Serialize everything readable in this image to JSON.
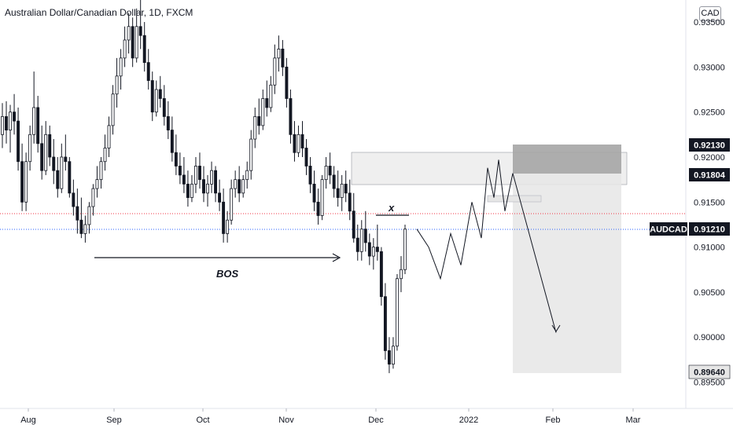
{
  "header": {
    "title": "Australian Dollar/Canadian Dollar, 1D, FXCM",
    "currency": "CAD"
  },
  "colors": {
    "candle": "#131722",
    "candle_up_fill": "#ffffff",
    "price_line_current": "#2962ff",
    "price_line_prev": "#f23645",
    "zone_light": "#ececec",
    "zone_dark": "#a5a5a5",
    "target_zone": "#e6e6e6",
    "badge_dark": "#131722",
    "badge_text_light": "#ffffff"
  },
  "chart_data": {
    "type": "candlestick",
    "symbol": "AUDCAD",
    "y_range": [
      0.8945,
      0.935
    ],
    "y_ticks": [
      "0.93500",
      "0.93000",
      "0.92500",
      "0.92000",
      "0.91500",
      "0.91000",
      "0.90500",
      "0.90000",
      "0.89500"
    ],
    "x_ticks": [
      "Aug",
      "Sep",
      "Oct",
      "Nov",
      "Dec",
      "2022",
      "Feb",
      "Mar"
    ],
    "current_price": {
      "label": "AUDCAD",
      "value": "0.91210"
    },
    "price_badges": [
      "0.92130",
      "0.91804",
      "0.89640"
    ],
    "annotations": {
      "bos": "BOS",
      "x_mark": "x"
    },
    "candles": [
      [
        0.9225,
        0.926,
        0.921,
        0.9245
      ],
      [
        0.9245,
        0.9262,
        0.9215,
        0.923
      ],
      [
        0.923,
        0.9258,
        0.9205,
        0.925
      ],
      [
        0.925,
        0.927,
        0.9225,
        0.924
      ],
      [
        0.924,
        0.9255,
        0.9185,
        0.9195
      ],
      [
        0.9195,
        0.9215,
        0.914,
        0.915
      ],
      [
        0.915,
        0.9205,
        0.914,
        0.9195
      ],
      [
        0.9195,
        0.9235,
        0.9185,
        0.9225
      ],
      [
        0.9225,
        0.9295,
        0.9215,
        0.9255
      ],
      [
        0.9255,
        0.9268,
        0.9205,
        0.9215
      ],
      [
        0.9215,
        0.9235,
        0.9175,
        0.9185
      ],
      [
        0.9185,
        0.924,
        0.918,
        0.9225
      ],
      [
        0.9225,
        0.9235,
        0.919,
        0.92
      ],
      [
        0.92,
        0.922,
        0.917,
        0.9185
      ],
      [
        0.9185,
        0.92,
        0.9155,
        0.9165
      ],
      [
        0.9165,
        0.9215,
        0.916,
        0.92
      ],
      [
        0.92,
        0.9225,
        0.9185,
        0.9195
      ],
      [
        0.9195,
        0.92,
        0.9155,
        0.916
      ],
      [
        0.916,
        0.9175,
        0.9135,
        0.9145
      ],
      [
        0.9145,
        0.9165,
        0.9115,
        0.913
      ],
      [
        0.913,
        0.9155,
        0.911,
        0.9115
      ],
      [
        0.9115,
        0.9135,
        0.9105,
        0.9125
      ],
      [
        0.9125,
        0.915,
        0.9115,
        0.9145
      ],
      [
        0.9145,
        0.917,
        0.9135,
        0.9165
      ],
      [
        0.9165,
        0.919,
        0.9155,
        0.9175
      ],
      [
        0.9175,
        0.92,
        0.9165,
        0.9195
      ],
      [
        0.9195,
        0.9225,
        0.9185,
        0.921
      ],
      [
        0.921,
        0.9245,
        0.92,
        0.9235
      ],
      [
        0.9235,
        0.928,
        0.9225,
        0.927
      ],
      [
        0.927,
        0.931,
        0.9255,
        0.929
      ],
      [
        0.929,
        0.932,
        0.9275,
        0.931
      ],
      [
        0.931,
        0.9345,
        0.93,
        0.933
      ],
      [
        0.933,
        0.936,
        0.9315,
        0.9345
      ],
      [
        0.9345,
        0.9355,
        0.93,
        0.931
      ],
      [
        0.931,
        0.9365,
        0.9305,
        0.9345
      ],
      [
        0.9345,
        0.9375,
        0.932,
        0.9335
      ],
      [
        0.9335,
        0.935,
        0.9295,
        0.9305
      ],
      [
        0.9305,
        0.932,
        0.9275,
        0.9285
      ],
      [
        0.9285,
        0.9295,
        0.924,
        0.925
      ],
      [
        0.925,
        0.9285,
        0.9245,
        0.9275
      ],
      [
        0.9275,
        0.929,
        0.9255,
        0.9265
      ],
      [
        0.9265,
        0.928,
        0.9235,
        0.9245
      ],
      [
        0.9245,
        0.9262,
        0.922,
        0.923
      ],
      [
        0.923,
        0.9245,
        0.9195,
        0.9205
      ],
      [
        0.9205,
        0.9225,
        0.918,
        0.919
      ],
      [
        0.919,
        0.9205,
        0.917,
        0.918
      ],
      [
        0.918,
        0.92,
        0.916,
        0.917
      ],
      [
        0.917,
        0.9185,
        0.9145,
        0.9155
      ],
      [
        0.9155,
        0.918,
        0.915,
        0.917
      ],
      [
        0.917,
        0.92,
        0.916,
        0.919
      ],
      [
        0.919,
        0.9205,
        0.9165,
        0.9175
      ],
      [
        0.9175,
        0.919,
        0.915,
        0.916
      ],
      [
        0.916,
        0.918,
        0.9145,
        0.917
      ],
      [
        0.917,
        0.9195,
        0.916,
        0.9185
      ],
      [
        0.9185,
        0.919,
        0.915,
        0.916
      ],
      [
        0.916,
        0.9175,
        0.914,
        0.915
      ],
      [
        0.915,
        0.9165,
        0.9105,
        0.9115
      ],
      [
        0.9115,
        0.914,
        0.9105,
        0.913
      ],
      [
        0.913,
        0.9175,
        0.9125,
        0.9165
      ],
      [
        0.9165,
        0.9185,
        0.9155,
        0.9175
      ],
      [
        0.9175,
        0.919,
        0.915,
        0.916
      ],
      [
        0.916,
        0.918,
        0.9155,
        0.9175
      ],
      [
        0.9175,
        0.9195,
        0.9165,
        0.9185
      ],
      [
        0.9185,
        0.923,
        0.9175,
        0.922
      ],
      [
        0.922,
        0.9255,
        0.921,
        0.9245
      ],
      [
        0.9245,
        0.9265,
        0.9225,
        0.9235
      ],
      [
        0.9235,
        0.9275,
        0.923,
        0.9265
      ],
      [
        0.9265,
        0.9285,
        0.9245,
        0.9255
      ],
      [
        0.9255,
        0.929,
        0.925,
        0.928
      ],
      [
        0.928,
        0.9325,
        0.927,
        0.931
      ],
      [
        0.931,
        0.9335,
        0.9295,
        0.932
      ],
      [
        0.932,
        0.933,
        0.929,
        0.93
      ],
      [
        0.93,
        0.931,
        0.9255,
        0.9265
      ],
      [
        0.9265,
        0.9275,
        0.9215,
        0.9225
      ],
      [
        0.9225,
        0.924,
        0.9195,
        0.9205
      ],
      [
        0.9205,
        0.9235,
        0.92,
        0.9225
      ],
      [
        0.9225,
        0.924,
        0.92,
        0.921
      ],
      [
        0.921,
        0.922,
        0.918,
        0.919
      ],
      [
        0.919,
        0.92,
        0.916,
        0.917
      ],
      [
        0.917,
        0.9185,
        0.914,
        0.915
      ],
      [
        0.915,
        0.9165,
        0.9125,
        0.9135
      ],
      [
        0.9135,
        0.918,
        0.913,
        0.9175
      ],
      [
        0.9175,
        0.92,
        0.9165,
        0.919
      ],
      [
        0.919,
        0.9205,
        0.917,
        0.918
      ],
      [
        0.918,
        0.919,
        0.9155,
        0.9165
      ],
      [
        0.9165,
        0.9185,
        0.9145,
        0.9155
      ],
      [
        0.9155,
        0.918,
        0.914,
        0.917
      ],
      [
        0.917,
        0.9185,
        0.915,
        0.916
      ],
      [
        0.916,
        0.9175,
        0.913,
        0.914
      ],
      [
        0.914,
        0.916,
        0.9105,
        0.911
      ],
      [
        0.911,
        0.9125,
        0.9085,
        0.9095
      ],
      [
        0.9095,
        0.913,
        0.9085,
        0.912
      ],
      [
        0.912,
        0.914,
        0.9095,
        0.9105
      ],
      [
        0.9105,
        0.9115,
        0.908,
        0.909
      ],
      [
        0.909,
        0.911,
        0.9075,
        0.91
      ],
      [
        0.91,
        0.9125,
        0.9085,
        0.9095
      ],
      [
        0.9095,
        0.91,
        0.9035,
        0.9045
      ],
      [
        0.9045,
        0.906,
        0.8975,
        0.8985
      ],
      [
        0.8985,
        0.9,
        0.896,
        0.897
      ],
      [
        0.897,
        0.9,
        0.8965,
        0.899
      ],
      [
        0.899,
        0.907,
        0.8985,
        0.9065
      ],
      [
        0.9065,
        0.909,
        0.905,
        0.9075
      ],
      [
        0.9075,
        0.9125,
        0.907,
        0.912
      ]
    ],
    "projection_path": [
      [
        0.912,
        0.91,
        0.9065,
        0.9115,
        0.908,
        0.915,
        0.911,
        0.9188,
        0.9155,
        0.9197,
        0.914,
        0.9182,
        0.9005
      ]
    ]
  }
}
